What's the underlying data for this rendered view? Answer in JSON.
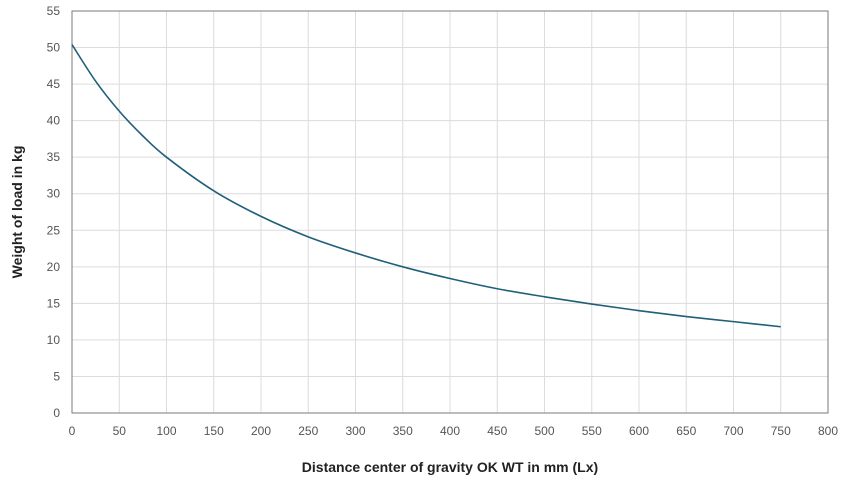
{
  "chart_data": {
    "type": "line",
    "title": "",
    "xlabel": "Distance center of gravity OK WT in mm (Lx)",
    "ylabel": "Weight of load in kg",
    "xlim": [
      0,
      800
    ],
    "ylim": [
      0,
      55
    ],
    "x_ticks": [
      0,
      50,
      100,
      150,
      200,
      250,
      300,
      350,
      400,
      450,
      500,
      550,
      600,
      650,
      700,
      750,
      800
    ],
    "y_ticks": [
      0,
      5,
      10,
      15,
      20,
      25,
      30,
      35,
      40,
      45,
      50,
      55
    ],
    "grid": true,
    "legend": "none",
    "line_color": "#1f5f7a",
    "series": [
      {
        "x": [
          0,
          25,
          50,
          75,
          100,
          150,
          200,
          250,
          300,
          350,
          400,
          450,
          500,
          550,
          600,
          650,
          700,
          750
        ],
        "y": [
          50.4,
          45.4,
          41.3,
          37.9,
          35.0,
          30.4,
          26.9,
          24.1,
          21.9,
          20.0,
          18.4,
          17.0,
          15.9,
          14.9,
          14.0,
          13.2,
          12.5,
          11.8
        ]
      }
    ]
  }
}
